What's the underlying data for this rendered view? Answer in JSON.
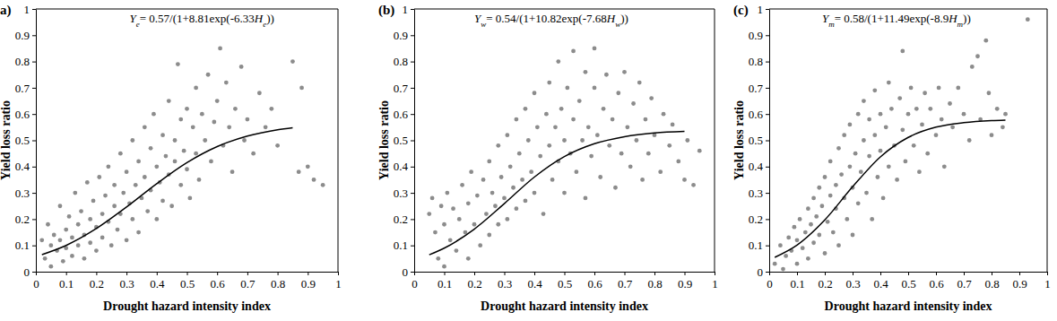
{
  "chart_data": [
    {
      "type": "scatter",
      "panel_label": "a)",
      "equation": [
        {
          "text": "Y",
          "format": "italic"
        },
        {
          "text": "e",
          "format": "sub"
        },
        {
          "text": "= 0.57/(1+8.81exp(-6.33"
        },
        {
          "text": "H",
          "format": "italic"
        },
        {
          "text": "e",
          "format": "sub"
        },
        {
          "text": "))"
        }
      ],
      "x_label": "Drought hazard intensity index",
      "y_label": "Yield loss ratio",
      "xlim": [
        0,
        1
      ],
      "ylim": [
        0,
        1
      ],
      "xticks": [
        0,
        0.1,
        0.2,
        0.3,
        0.4,
        0.5,
        0.6,
        0.7,
        0.8,
        0.9,
        1
      ],
      "yticks": [
        0,
        0.1,
        0.2,
        0.3,
        0.4,
        0.5,
        0.6,
        0.7,
        0.8,
        0.9,
        1
      ],
      "series": [
        {
          "type": "scatter",
          "color": "#8c8c8c",
          "marker": "circle",
          "x": [
            0.02,
            0.03,
            0.04,
            0.05,
            0.05,
            0.06,
            0.07,
            0.08,
            0.08,
            0.09,
            0.1,
            0.1,
            0.11,
            0.12,
            0.12,
            0.13,
            0.14,
            0.14,
            0.15,
            0.16,
            0.16,
            0.17,
            0.18,
            0.18,
            0.19,
            0.2,
            0.2,
            0.21,
            0.22,
            0.22,
            0.23,
            0.24,
            0.24,
            0.25,
            0.26,
            0.26,
            0.27,
            0.28,
            0.28,
            0.29,
            0.3,
            0.3,
            0.31,
            0.32,
            0.32,
            0.33,
            0.34,
            0.34,
            0.35,
            0.36,
            0.36,
            0.37,
            0.38,
            0.38,
            0.39,
            0.4,
            0.4,
            0.41,
            0.42,
            0.42,
            0.43,
            0.44,
            0.44,
            0.45,
            0.46,
            0.46,
            0.47,
            0.48,
            0.48,
            0.49,
            0.5,
            0.5,
            0.51,
            0.52,
            0.53,
            0.53,
            0.54,
            0.55,
            0.56,
            0.57,
            0.58,
            0.59,
            0.6,
            0.61,
            0.62,
            0.63,
            0.64,
            0.65,
            0.66,
            0.68,
            0.69,
            0.7,
            0.72,
            0.74,
            0.76,
            0.78,
            0.8,
            0.85,
            0.87,
            0.88,
            0.9,
            0.92,
            0.95
          ],
          "values": [
            0.12,
            0.05,
            0.18,
            0.1,
            0.02,
            0.14,
            0.08,
            0.25,
            0.12,
            0.04,
            0.16,
            0.09,
            0.21,
            0.13,
            0.06,
            0.3,
            0.18,
            0.1,
            0.23,
            0.14,
            0.05,
            0.34,
            0.2,
            0.11,
            0.27,
            0.17,
            0.08,
            0.36,
            0.22,
            0.13,
            0.29,
            0.19,
            0.4,
            0.1,
            0.25,
            0.33,
            0.16,
            0.45,
            0.22,
            0.3,
            0.12,
            0.38,
            0.26,
            0.5,
            0.2,
            0.33,
            0.42,
            0.15,
            0.28,
            0.55,
            0.36,
            0.23,
            0.47,
            0.31,
            0.6,
            0.4,
            0.2,
            0.34,
            0.52,
            0.27,
            0.44,
            0.65,
            0.37,
            0.25,
            0.5,
            0.42,
            0.79,
            0.58,
            0.33,
            0.46,
            0.62,
            0.39,
            0.28,
            0.55,
            0.7,
            0.45,
            0.35,
            0.6,
            0.5,
            0.75,
            0.42,
            0.57,
            0.65,
            0.85,
            0.48,
            0.72,
            0.55,
            0.38,
            0.62,
            0.78,
            0.5,
            0.58,
            0.45,
            0.68,
            0.55,
            0.62,
            0.48,
            0.8,
            0.38,
            0.7,
            0.4,
            0.35,
            0.33
          ]
        },
        {
          "type": "line",
          "color": "#000000",
          "line_style": "solid",
          "x": [
            0.02,
            0.1,
            0.2,
            0.3,
            0.4,
            0.5,
            0.6,
            0.7,
            0.8,
            0.85
          ],
          "values": [
            0.065,
            0.1,
            0.164,
            0.246,
            0.335,
            0.415,
            0.476,
            0.516,
            0.54,
            0.548
          ]
        }
      ]
    },
    {
      "type": "scatter",
      "panel_label": "(b)",
      "equation": [
        {
          "text": "Y",
          "format": "italic"
        },
        {
          "text": "w",
          "format": "sub"
        },
        {
          "text": "= 0.54/(1+10.82exp(-7.68"
        },
        {
          "text": "H",
          "format": "italic"
        },
        {
          "text": "w",
          "format": "sub"
        },
        {
          "text": "))"
        }
      ],
      "x_label": "Drought hazard intensity index",
      "y_label": "Yield loss ratio",
      "xlim": [
        0,
        1
      ],
      "ylim": [
        0,
        1
      ],
      "xticks": [
        0,
        0.1,
        0.2,
        0.3,
        0.4,
        0.5,
        0.6,
        0.7,
        0.8,
        0.9,
        1
      ],
      "yticks": [
        0,
        0.1,
        0.2,
        0.3,
        0.4,
        0.5,
        0.6,
        0.7,
        0.8,
        0.9,
        1
      ],
      "series": [
        {
          "type": "scatter",
          "color": "#8c8c8c",
          "marker": "circle",
          "x": [
            0.05,
            0.06,
            0.07,
            0.08,
            0.09,
            0.1,
            0.1,
            0.11,
            0.12,
            0.13,
            0.14,
            0.15,
            0.16,
            0.17,
            0.18,
            0.18,
            0.19,
            0.2,
            0.21,
            0.22,
            0.23,
            0.24,
            0.25,
            0.25,
            0.26,
            0.27,
            0.28,
            0.28,
            0.29,
            0.3,
            0.31,
            0.31,
            0.32,
            0.33,
            0.34,
            0.34,
            0.35,
            0.36,
            0.37,
            0.37,
            0.38,
            0.39,
            0.4,
            0.4,
            0.41,
            0.42,
            0.43,
            0.44,
            0.45,
            0.45,
            0.46,
            0.47,
            0.48,
            0.48,
            0.49,
            0.5,
            0.5,
            0.51,
            0.52,
            0.53,
            0.53,
            0.54,
            0.55,
            0.56,
            0.57,
            0.57,
            0.58,
            0.59,
            0.6,
            0.6,
            0.61,
            0.62,
            0.63,
            0.64,
            0.65,
            0.66,
            0.67,
            0.68,
            0.69,
            0.7,
            0.71,
            0.72,
            0.73,
            0.74,
            0.75,
            0.76,
            0.77,
            0.78,
            0.79,
            0.8,
            0.82,
            0.83,
            0.85,
            0.86,
            0.88,
            0.9,
            0.91,
            0.93,
            0.95
          ],
          "values": [
            0.22,
            0.28,
            0.15,
            0.05,
            0.25,
            0.18,
            0.02,
            0.3,
            0.12,
            0.24,
            0.08,
            0.2,
            0.33,
            0.15,
            0.26,
            0.05,
            0.38,
            0.18,
            0.29,
            0.1,
            0.35,
            0.22,
            0.42,
            0.14,
            0.3,
            0.25,
            0.48,
            0.18,
            0.36,
            0.28,
            0.52,
            0.2,
            0.4,
            0.32,
            0.58,
            0.24,
            0.45,
            0.35,
            0.62,
            0.27,
            0.5,
            0.38,
            0.68,
            0.3,
            0.55,
            0.44,
            0.22,
            0.6,
            0.48,
            0.72,
            0.35,
            0.55,
            0.8,
            0.42,
            0.62,
            0.3,
            0.5,
            0.7,
            0.45,
            0.84,
            0.58,
            0.38,
            0.65,
            0.5,
            0.76,
            0.28,
            0.55,
            0.44,
            0.7,
            0.85,
            0.52,
            0.36,
            0.62,
            0.75,
            0.48,
            0.58,
            0.32,
            0.68,
            0.45,
            0.76,
            0.55,
            0.4,
            0.64,
            0.5,
            0.72,
            0.35,
            0.58,
            0.45,
            0.66,
            0.52,
            0.38,
            0.6,
            0.48,
            0.56,
            0.42,
            0.35,
            0.5,
            0.33,
            0.46
          ]
        },
        {
          "type": "line",
          "color": "#000000",
          "line_style": "solid",
          "x": [
            0.05,
            0.1,
            0.2,
            0.3,
            0.4,
            0.5,
            0.6,
            0.7,
            0.8,
            0.9
          ],
          "values": [
            0.0645,
            0.0897,
            0.162,
            0.259,
            0.36,
            0.438,
            0.487,
            0.514,
            0.528,
            0.534
          ]
        }
      ]
    },
    {
      "type": "scatter",
      "panel_label": "(c)",
      "equation": [
        {
          "text": "Y",
          "format": "italic"
        },
        {
          "text": "m",
          "format": "sub"
        },
        {
          "text": "= 0.58/(1+11.49exp(-8.9"
        },
        {
          "text": "H",
          "format": "italic"
        },
        {
          "text": "m",
          "format": "sub"
        },
        {
          "text": "))"
        }
      ],
      "x_label": "Drought hazard intensity index",
      "y_label": "Yield loss ratio",
      "xlim": [
        0,
        1
      ],
      "ylim": [
        0,
        1
      ],
      "xticks": [
        0,
        0.1,
        0.2,
        0.3,
        0.4,
        0.5,
        0.6,
        0.7,
        0.8,
        0.9,
        1
      ],
      "yticks": [
        0,
        0.1,
        0.2,
        0.3,
        0.4,
        0.5,
        0.6,
        0.7,
        0.8,
        0.9,
        1
      ],
      "series": [
        {
          "type": "scatter",
          "color": "#8c8c8c",
          "marker": "circle",
          "x": [
            0.02,
            0.04,
            0.05,
            0.06,
            0.07,
            0.08,
            0.09,
            0.1,
            0.1,
            0.11,
            0.12,
            0.13,
            0.14,
            0.14,
            0.15,
            0.16,
            0.16,
            0.17,
            0.18,
            0.18,
            0.19,
            0.2,
            0.2,
            0.21,
            0.22,
            0.22,
            0.23,
            0.24,
            0.24,
            0.25,
            0.25,
            0.26,
            0.27,
            0.27,
            0.28,
            0.29,
            0.29,
            0.3,
            0.3,
            0.31,
            0.32,
            0.32,
            0.33,
            0.34,
            0.34,
            0.35,
            0.36,
            0.36,
            0.37,
            0.38,
            0.38,
            0.39,
            0.4,
            0.4,
            0.41,
            0.42,
            0.43,
            0.43,
            0.44,
            0.45,
            0.46,
            0.47,
            0.48,
            0.48,
            0.49,
            0.5,
            0.51,
            0.52,
            0.53,
            0.54,
            0.55,
            0.56,
            0.57,
            0.58,
            0.6,
            0.61,
            0.62,
            0.63,
            0.65,
            0.66,
            0.68,
            0.7,
            0.72,
            0.73,
            0.75,
            0.76,
            0.78,
            0.79,
            0.8,
            0.82,
            0.84,
            0.85,
            0.93
          ],
          "values": [
            0.03,
            0.1,
            0.01,
            0.06,
            0.13,
            0.08,
            0.17,
            0.03,
            0.12,
            0.2,
            0.09,
            0.15,
            0.24,
            0.05,
            0.18,
            0.28,
            0.11,
            0.21,
            0.32,
            0.14,
            0.25,
            0.07,
            0.36,
            0.19,
            0.29,
            0.42,
            0.15,
            0.33,
            0.24,
            0.47,
            0.1,
            0.37,
            0.28,
            0.52,
            0.2,
            0.4,
            0.56,
            0.32,
            0.14,
            0.45,
            0.6,
            0.26,
            0.38,
            0.5,
            0.65,
            0.3,
            0.44,
            0.58,
            0.2,
            0.52,
            0.69,
            0.36,
            0.46,
            0.6,
            0.28,
            0.55,
            0.72,
            0.4,
            0.62,
            0.48,
            0.35,
            0.66,
            0.54,
            0.84,
            0.42,
            0.6,
            0.7,
            0.48,
            0.62,
            0.38,
            0.56,
            0.68,
            0.45,
            0.62,
            0.52,
            0.7,
            0.58,
            0.4,
            0.64,
            0.55,
            0.7,
            0.6,
            0.5,
            0.78,
            0.82,
            0.58,
            0.88,
            0.68,
            0.52,
            0.62,
            0.55,
            0.6,
            0.96
          ]
        },
        {
          "type": "line",
          "color": "#000000",
          "line_style": "solid",
          "x": [
            0.02,
            0.1,
            0.2,
            0.3,
            0.4,
            0.5,
            0.6,
            0.7,
            0.8,
            0.85
          ],
          "values": [
            0.0546,
            0.101,
            0.197,
            0.323,
            0.437,
            0.511,
            0.55,
            0.567,
            0.575,
            0.577
          ]
        }
      ]
    }
  ]
}
